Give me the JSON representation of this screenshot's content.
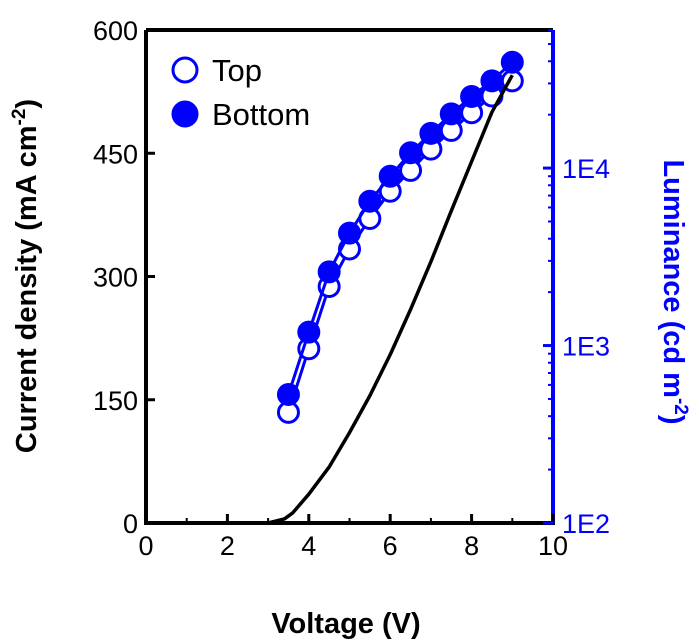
{
  "chart_data": {
    "type": "line",
    "xlabel": "Voltage (V)",
    "ylabel_left": {
      "main": "Current density (mA cm",
      "sup": "-2",
      "end": ")"
    },
    "ylabel_right": {
      "main": "Luminance (cd m",
      "sup": "-2",
      "end": ")"
    },
    "xlim": [
      0,
      10
    ],
    "ylim_left": [
      0,
      600
    ],
    "ylim_right": [
      100,
      60000
    ],
    "right_scale": "log",
    "x_ticks": [
      "0",
      "2",
      "4",
      "6",
      "8",
      "10"
    ],
    "y_left_ticks": [
      "0",
      "150",
      "300",
      "450",
      "600"
    ],
    "y_right_ticks": [
      "1E2",
      "1E3",
      "1E4"
    ],
    "grid": false,
    "legend_position": "top-left",
    "colors": {
      "axis_left": "#000000",
      "axis_right": "#0000ff",
      "series": "#0000ff",
      "current": "#000000"
    },
    "series": [
      {
        "name": "Top",
        "marker": "open-circle",
        "axis": "right",
        "x": [
          3.5,
          4,
          4.5,
          5,
          5.5,
          6,
          6.5,
          7,
          7.5,
          8,
          8.5,
          9
        ],
        "y": [
          420,
          960,
          2150,
          3500,
          5200,
          7400,
          9700,
          12800,
          16300,
          20500,
          25500,
          31000
        ]
      },
      {
        "name": "Bottom",
        "marker": "filled-circle",
        "axis": "right",
        "x": [
          3.5,
          4,
          4.5,
          5,
          5.5,
          6,
          6.5,
          7,
          7.5,
          8,
          8.5,
          9
        ],
        "y": [
          530,
          1190,
          2600,
          4300,
          6500,
          9000,
          12200,
          15700,
          20200,
          25300,
          31000,
          39500
        ]
      },
      {
        "name": "",
        "marker": "none",
        "axis": "left",
        "x": [
          2.6,
          3.0,
          3.4,
          3.6,
          4.0,
          4.5,
          5.0,
          5.5,
          6.0,
          6.5,
          7.0,
          7.5,
          8.0,
          8.5,
          9.0
        ],
        "y": [
          0,
          0,
          5,
          12,
          35,
          68,
          110,
          155,
          205,
          260,
          318,
          380,
          440,
          500,
          545
        ]
      }
    ]
  }
}
